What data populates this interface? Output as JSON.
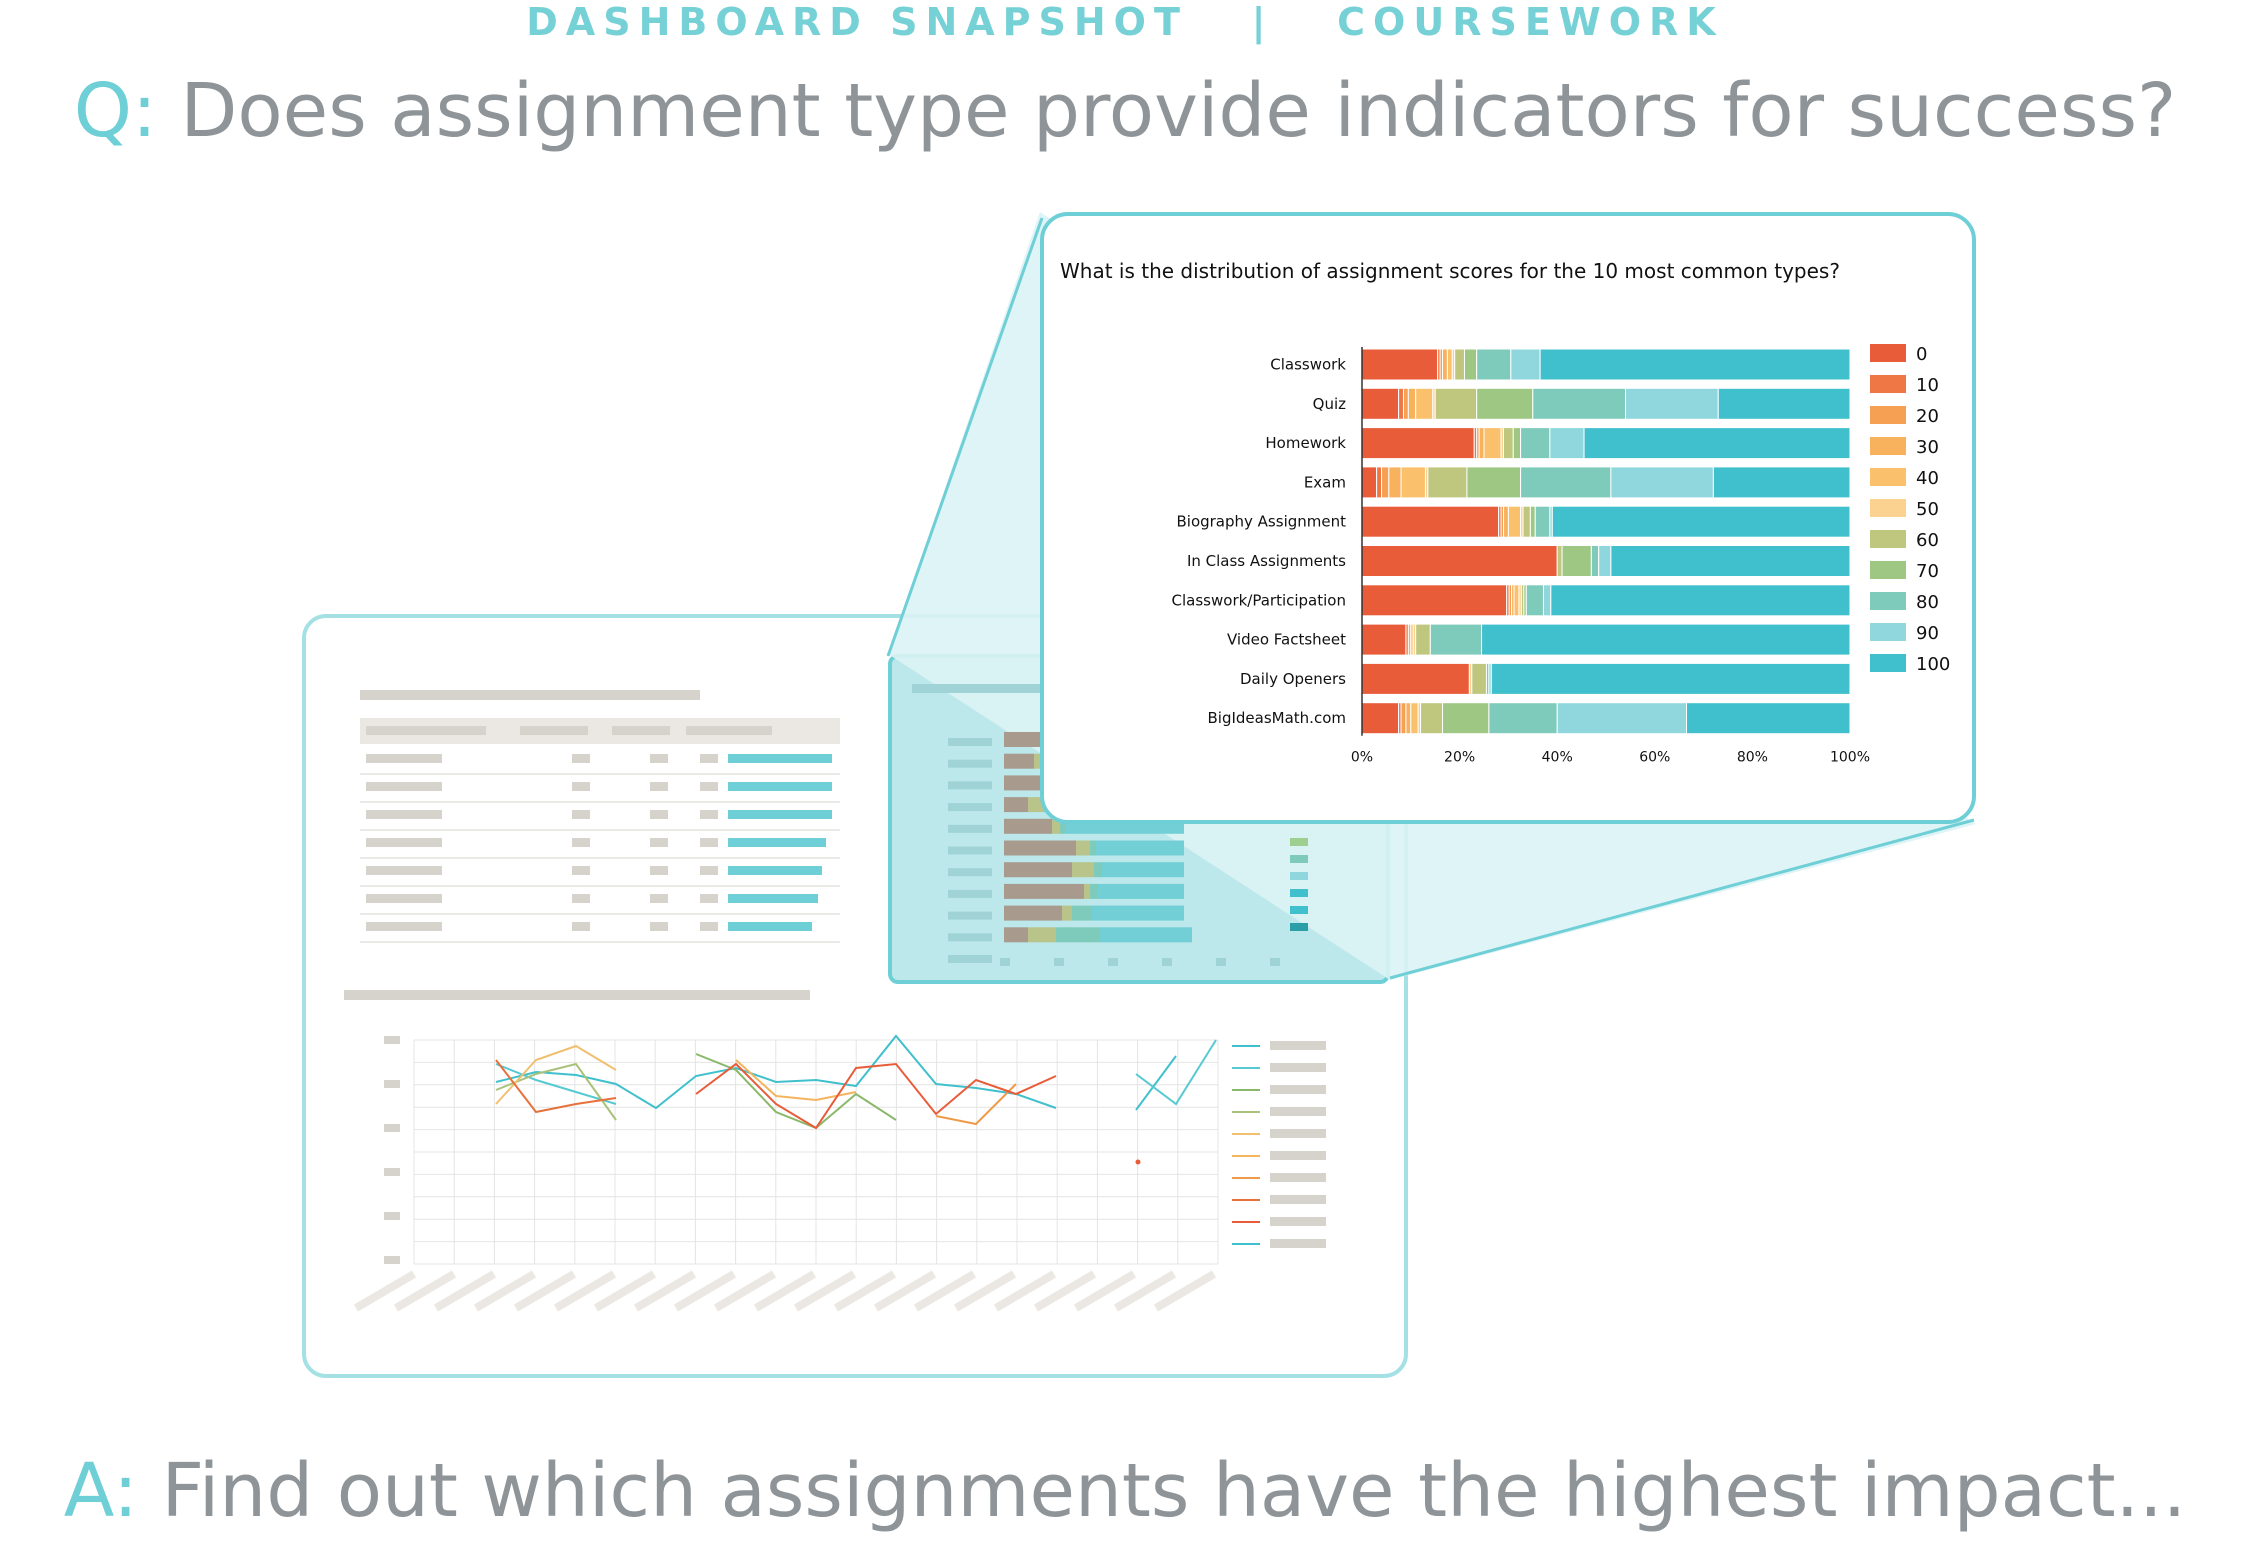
{
  "header": {
    "tag": "DASHBOARD SNAPSHOT   |   COURSEWORK"
  },
  "question": {
    "prefix": "Q:",
    "text": " Does assignment type provide indicators for success?"
  },
  "answer": {
    "prefix": "A:",
    "text": " Find out which assignments have the highest impact..."
  },
  "colors": {
    "accent": "#6fcfd6",
    "muted_text": "#8e9497",
    "placeholder_gray": "#d6d3cc"
  },
  "chart_data": {
    "type": "bar",
    "orientation": "horizontal-stacked-100",
    "title": "What is the distribution of assignment scores for the 10 most common types?",
    "categories": [
      "Classwork",
      "Quiz",
      "Homework",
      "Exam",
      "Biography Assignment",
      "In Class Assignments",
      "Classwork/Participation",
      "Video Factsheet",
      "Daily Openers",
      "BigIdeasMath.com"
    ],
    "xlim": [
      0,
      100
    ],
    "xticks": [
      "0%",
      "20%",
      "40%",
      "60%",
      "80%",
      "100%"
    ],
    "legend_position": "right",
    "series": [
      {
        "name": "0",
        "color": "#e85c3a",
        "values": [
          15.5,
          7.5,
          23.0,
          3.0,
          28.0,
          40.0,
          29.5,
          9.0,
          22.0,
          7.5
        ]
      },
      {
        "name": "10",
        "color": "#ef7645",
        "values": [
          0.5,
          1.0,
          0.5,
          1.0,
          0.5,
          0.0,
          0.5,
          0.5,
          0.0,
          0.5
        ]
      },
      {
        "name": "20",
        "color": "#f5a053",
        "values": [
          0.5,
          1.0,
          0.5,
          1.5,
          0.5,
          0.0,
          0.5,
          0.0,
          0.0,
          1.0
        ]
      },
      {
        "name": "30",
        "color": "#f8b25e",
        "values": [
          1.0,
          1.5,
          1.0,
          2.5,
          1.0,
          0.0,
          0.5,
          0.5,
          0.0,
          1.0
        ]
      },
      {
        "name": "40",
        "color": "#fbc06c",
        "values": [
          1.0,
          3.5,
          3.5,
          5.0,
          2.5,
          0.0,
          1.0,
          0.5,
          0.0,
          1.5
        ]
      },
      {
        "name": "50",
        "color": "#fcd291",
        "values": [
          0.5,
          0.5,
          0.5,
          0.5,
          0.5,
          0.0,
          0.5,
          0.5,
          0.5,
          0.5
        ]
      },
      {
        "name": "60",
        "color": "#bec77d",
        "values": [
          2.0,
          8.5,
          2.0,
          8.0,
          1.5,
          1.0,
          0.5,
          3.0,
          3.0,
          4.5
        ]
      },
      {
        "name": "70",
        "color": "#9fc784",
        "values": [
          2.5,
          11.5,
          1.5,
          11.0,
          1.0,
          6.0,
          0.5,
          0.0,
          0.0,
          9.5
        ]
      },
      {
        "name": "80",
        "color": "#7fcbbb",
        "values": [
          7.0,
          19.0,
          6.0,
          18.5,
          3.0,
          1.5,
          3.5,
          10.5,
          0.5,
          14.0
        ]
      },
      {
        "name": "90",
        "color": "#8fd7dd",
        "values": [
          6.0,
          19.0,
          7.0,
          21.0,
          0.5,
          2.5,
          1.5,
          0.0,
          0.5,
          26.5
        ]
      },
      {
        "name": "100",
        "color": "#40c0cc",
        "values": [
          63.5,
          27.0,
          54.5,
          28.0,
          61.0,
          49.0,
          61.0,
          75.5,
          73.5,
          33.5
        ]
      }
    ]
  }
}
